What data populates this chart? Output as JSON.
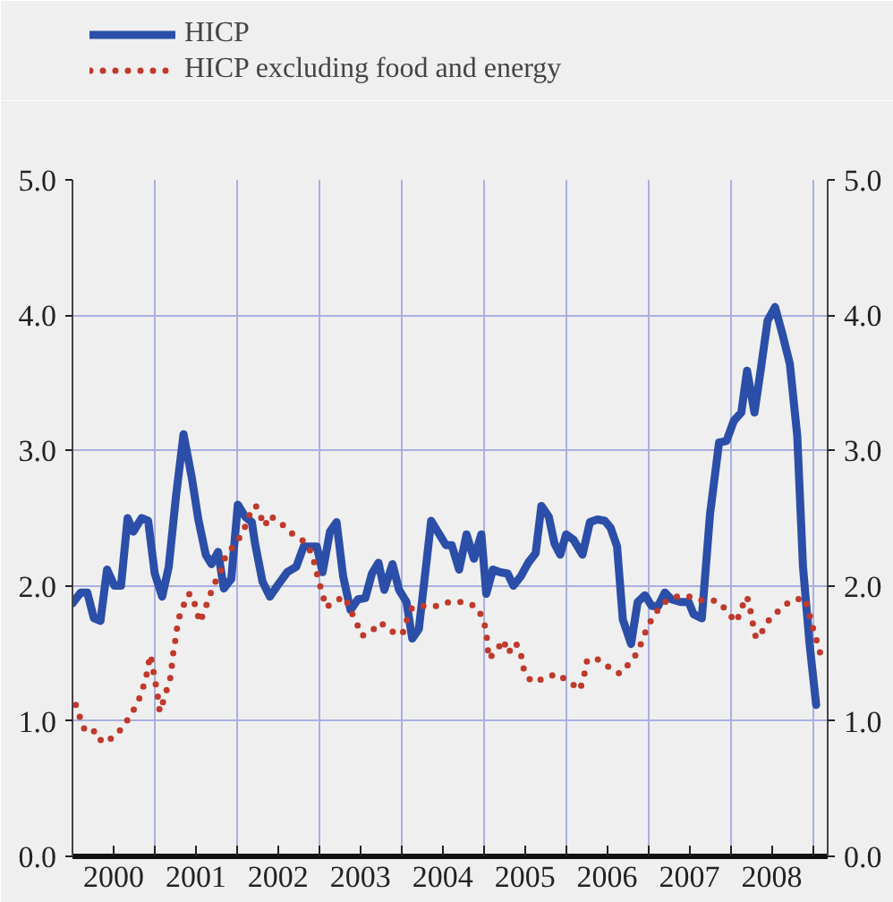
{
  "chart_data": {
    "type": "line",
    "xlim": [
      2000,
      2009.18
    ],
    "xticks": [
      {
        "value": 2000,
        "label": null
      },
      {
        "value": 2000.5,
        "label": "2000"
      },
      {
        "value": 2001,
        "label": null
      },
      {
        "value": 2001.5,
        "label": "2001"
      },
      {
        "value": 2002,
        "label": null
      },
      {
        "value": 2002.5,
        "label": "2002"
      },
      {
        "value": 2003,
        "label": null
      },
      {
        "value": 2003.5,
        "label": "2003"
      },
      {
        "value": 2004,
        "label": null
      },
      {
        "value": 2004.5,
        "label": "2004"
      },
      {
        "value": 2005,
        "label": null
      },
      {
        "value": 2005.5,
        "label": "2005"
      },
      {
        "value": 2006,
        "label": null
      },
      {
        "value": 2006.5,
        "label": "2006"
      },
      {
        "value": 2007,
        "label": null
      },
      {
        "value": 2007.5,
        "label": "2007"
      },
      {
        "value": 2008,
        "label": null
      },
      {
        "value": 2008.5,
        "label": "2008"
      },
      {
        "value": 2009,
        "label": null
      }
    ],
    "ylim": [
      0,
      5
    ],
    "yticks": [
      {
        "value": 0,
        "label": "0.0"
      },
      {
        "value": 1,
        "label": "1.0"
      },
      {
        "value": 2,
        "label": "2.0"
      },
      {
        "value": 3,
        "label": "3.0"
      },
      {
        "value": 4,
        "label": "4.0"
      },
      {
        "value": 5,
        "label": "5.0"
      }
    ],
    "y2lim": [
      0,
      5
    ],
    "y2ticks": [
      {
        "value": 0,
        "label": "0.0"
      },
      {
        "value": 1,
        "label": "1.0"
      },
      {
        "value": 2,
        "label": "2.0"
      },
      {
        "value": 3,
        "label": "3.0"
      },
      {
        "value": 4,
        "label": "4.0"
      },
      {
        "value": 5,
        "label": "5.0"
      }
    ],
    "grid": true,
    "legend": "top left",
    "series": [
      {
        "name": "HICP",
        "color": "#2b4ea8",
        "line_style": "solid",
        "x": [
          2000.0,
          2000.1,
          2000.18,
          2000.26,
          2000.34,
          2000.42,
          2000.51,
          2000.59,
          2000.67,
          2000.74,
          2000.84,
          2000.92,
          2001.0,
          2001.09,
          2001.17,
          2001.26,
          2001.35,
          2001.45,
          2001.53,
          2001.62,
          2001.69,
          2001.77,
          2001.84,
          2001.93,
          2002.01,
          2002.1,
          2002.18,
          2002.22,
          2002.31,
          2002.4,
          2002.49,
          2002.61,
          2002.72,
          2002.81,
          2002.9,
          2002.97,
          2003.04,
          2003.13,
          2003.21,
          2003.29,
          2003.38,
          2003.47,
          2003.56,
          2003.64,
          2003.72,
          2003.79,
          2003.89,
          2003.97,
          2004.06,
          2004.13,
          2004.21,
          2004.28,
          2004.36,
          2004.46,
          2004.54,
          2004.61,
          2004.7,
          2004.79,
          2004.88,
          2004.97,
          2005.03,
          2005.11,
          2005.2,
          2005.29,
          2005.36,
          2005.45,
          2005.54,
          2005.63,
          2005.7,
          2005.79,
          2005.86,
          2005.93,
          2006.0,
          2006.09,
          2006.2,
          2006.29,
          2006.38,
          2006.47,
          2006.54,
          2006.62,
          2006.69,
          2006.79,
          2006.87,
          2006.96,
          2007.04,
          2007.12,
          2007.2,
          2007.28,
          2007.39,
          2007.49,
          2007.55,
          2007.65,
          2007.75,
          2007.86,
          2007.95,
          2008.04,
          2008.13,
          2008.2,
          2008.29,
          2008.36,
          2008.45,
          2008.54,
          2008.63,
          2008.72,
          2008.81,
          2008.88,
          2008.96,
          2009.04
        ],
        "values": [
          1.87,
          1.95,
          1.95,
          1.76,
          1.74,
          2.12,
          2.0,
          2.0,
          2.5,
          2.4,
          2.5,
          2.48,
          2.09,
          1.92,
          2.14,
          2.67,
          3.12,
          2.8,
          2.49,
          2.23,
          2.16,
          2.25,
          1.98,
          2.05,
          2.6,
          2.51,
          2.47,
          2.31,
          2.03,
          1.92,
          2.0,
          2.1,
          2.14,
          2.29,
          2.29,
          2.29,
          2.1,
          2.4,
          2.47,
          2.07,
          1.82,
          1.9,
          1.91,
          2.09,
          2.17,
          1.97,
          2.16,
          1.97,
          1.88,
          1.61,
          1.68,
          2.05,
          2.48,
          2.38,
          2.3,
          2.3,
          2.12,
          2.38,
          2.2,
          2.38,
          1.94,
          2.12,
          2.1,
          2.09,
          2.0,
          2.07,
          2.17,
          2.24,
          2.59,
          2.51,
          2.31,
          2.23,
          2.38,
          2.34,
          2.23,
          2.47,
          2.49,
          2.48,
          2.43,
          2.29,
          1.75,
          1.57,
          1.88,
          1.93,
          1.85,
          1.85,
          1.95,
          1.9,
          1.88,
          1.88,
          1.79,
          1.76,
          2.53,
          3.06,
          3.07,
          3.22,
          3.28,
          3.59,
          3.28,
          3.57,
          3.96,
          4.06,
          3.86,
          3.64,
          3.11,
          2.14,
          1.57,
          1.12
        ]
      },
      {
        "name": "HICP excluding food and energy",
        "color": "#c0392b",
        "line_style": "dotted",
        "x": [
          2000.04,
          2000.09,
          2000.15,
          2000.21,
          2000.28,
          2000.36,
          2000.5,
          2000.62,
          2000.7,
          2000.79,
          2000.85,
          2000.9,
          2000.93,
          2000.95,
          2000.98,
          2001.01,
          2001.04,
          2001.06,
          2001.09,
          2001.14,
          2001.19,
          2001.21,
          2001.23,
          2001.26,
          2001.28,
          2001.34,
          2001.41,
          2001.46,
          2001.5,
          2001.55,
          2001.6,
          2001.66,
          2001.72,
          2001.8,
          2001.85,
          2001.95,
          2002.06,
          2002.12,
          2002.18,
          2002.23,
          2002.34,
          2002.39,
          2002.52,
          2002.66,
          2002.81,
          2002.9,
          2002.95,
          2002.99,
          2003.04,
          2003.08,
          2003.2,
          2003.31,
          2003.38,
          2003.45,
          2003.52,
          2003.63,
          2003.74,
          2003.89,
          2004.01,
          2004.06,
          2004.13,
          2004.26,
          2004.42,
          2004.58,
          2004.74,
          2004.9,
          2004.99,
          2005.03,
          2005.06,
          2005.14,
          2005.24,
          2005.29,
          2005.33,
          2005.38,
          2005.44,
          2005.49,
          2005.58,
          2005.72,
          2005.88,
          2006.04,
          2006.17,
          2006.22,
          2006.25,
          2006.35,
          2006.49,
          2006.65,
          2006.76,
          2006.86,
          2006.93,
          2006.99,
          2007.08,
          2007.17,
          2007.33,
          2007.5,
          2007.66,
          2007.83,
          2007.95,
          2008.06,
          2008.12,
          2008.17,
          2008.2,
          2008.24,
          2008.27,
          2008.31,
          2008.37,
          2008.47,
          2008.59,
          2008.73,
          2008.9,
          2008.95,
          2008.99,
          2009.04,
          2009.09
        ],
        "values": [
          1.12,
          1.03,
          0.93,
          0.91,
          0.93,
          0.84,
          0.88,
          0.96,
          1.04,
          1.13,
          1.23,
          1.34,
          1.44,
          1.49,
          1.38,
          1.28,
          1.17,
          1.07,
          1.12,
          1.22,
          1.32,
          1.42,
          1.53,
          1.63,
          1.74,
          1.84,
          1.94,
          1.93,
          1.83,
          1.73,
          1.81,
          1.91,
          2.01,
          2.1,
          2.2,
          2.29,
          2.38,
          2.47,
          2.57,
          2.59,
          2.44,
          2.52,
          2.47,
          2.39,
          2.33,
          2.25,
          2.15,
          2.04,
          1.94,
          1.84,
          1.89,
          1.92,
          1.82,
          1.73,
          1.63,
          1.66,
          1.73,
          1.66,
          1.64,
          1.74,
          1.84,
          1.85,
          1.85,
          1.88,
          1.88,
          1.85,
          1.76,
          1.66,
          1.46,
          1.51,
          1.6,
          1.5,
          1.53,
          1.58,
          1.53,
          1.37,
          1.29,
          1.31,
          1.35,
          1.29,
          1.23,
          1.34,
          1.44,
          1.47,
          1.41,
          1.35,
          1.42,
          1.5,
          1.6,
          1.7,
          1.79,
          1.87,
          1.92,
          1.92,
          1.89,
          1.89,
          1.82,
          1.73,
          1.8,
          1.9,
          1.92,
          1.82,
          1.72,
          1.61,
          1.65,
          1.75,
          1.82,
          1.89,
          1.91,
          1.81,
          1.71,
          1.61,
          1.5
        ]
      }
    ]
  }
}
